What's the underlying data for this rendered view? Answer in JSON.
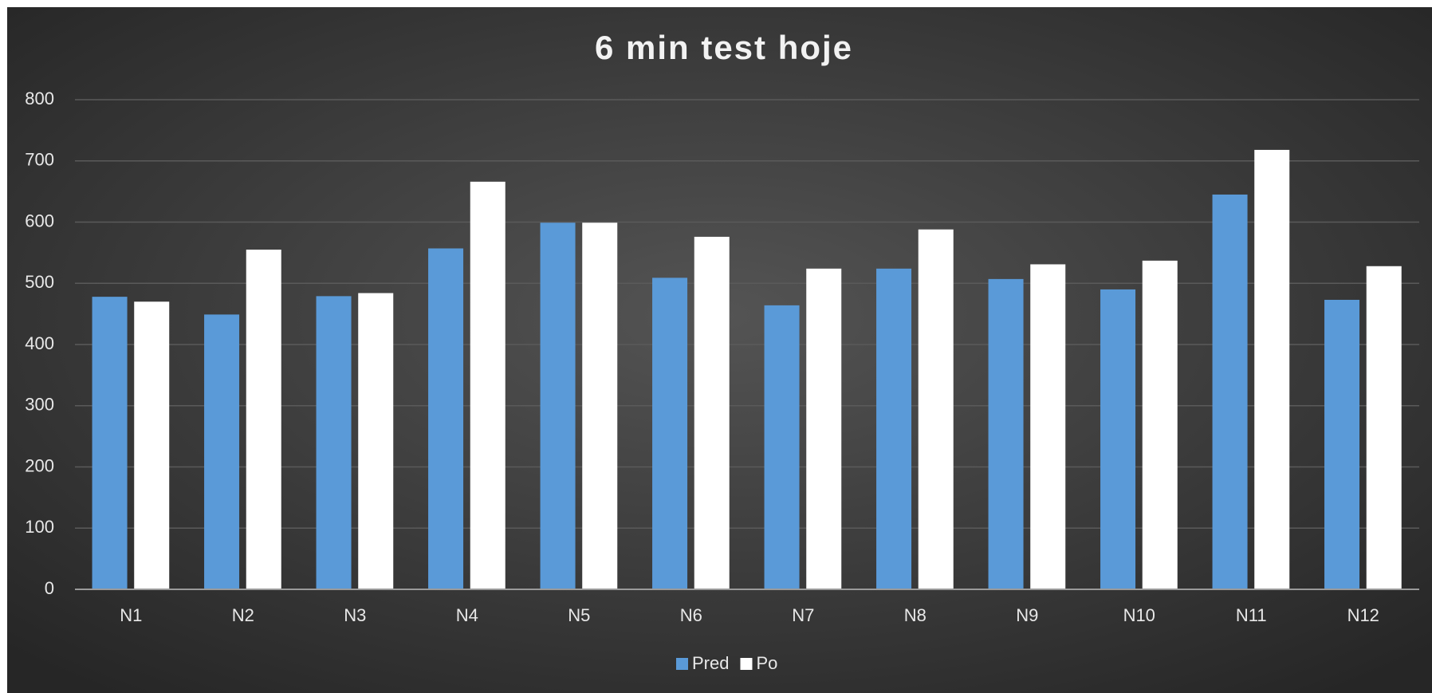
{
  "chart_data": {
    "type": "bar",
    "title": "6 min test hoje",
    "categories": [
      "N1",
      "N2",
      "N3",
      "N4",
      "N5",
      "N6",
      "N7",
      "N8",
      "N9",
      "N10",
      "N11",
      "N12"
    ],
    "series": [
      {
        "name": "Pred",
        "color": "#5a9ad8",
        "values": [
          478,
          449,
          479,
          557,
          599,
          509,
          464,
          524,
          507,
          490,
          645,
          473
        ]
      },
      {
        "name": "Po",
        "color": "#ffffff",
        "values": [
          470,
          555,
          484,
          666,
          599,
          576,
          524,
          588,
          531,
          537,
          718,
          528
        ]
      }
    ],
    "ylim": [
      0,
      800
    ],
    "yticks": [
      0,
      100,
      200,
      300,
      400,
      500,
      600,
      700,
      800
    ],
    "grid": true,
    "legend": "bottom"
  }
}
